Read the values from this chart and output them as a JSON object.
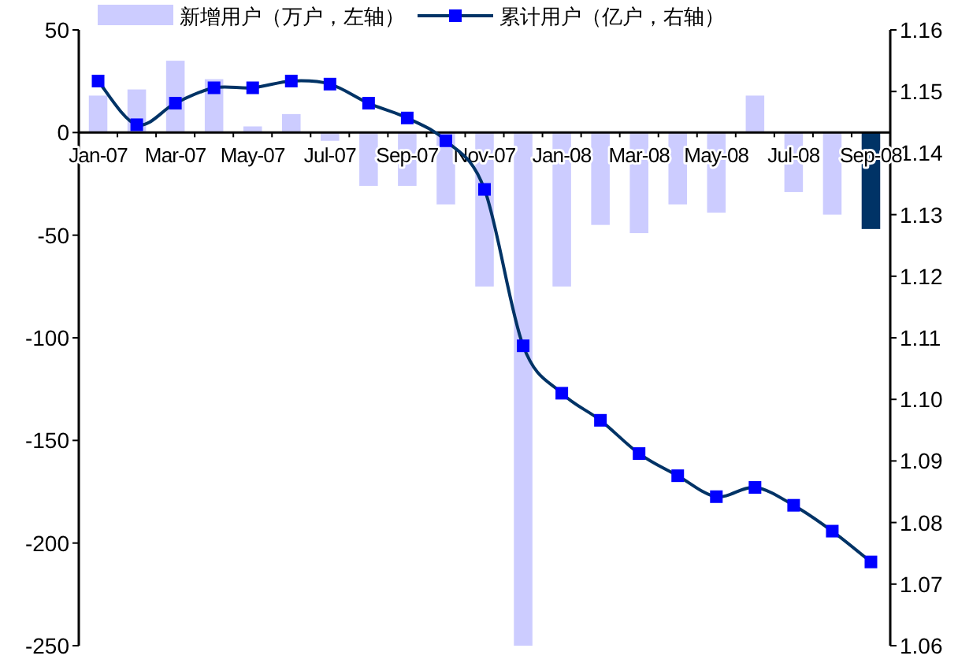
{
  "chart_data": {
    "type": "bar",
    "categories": [
      "Jan-07",
      null,
      "Mar-07",
      null,
      "May-07",
      null,
      "Jul-07",
      null,
      "Sep-07",
      null,
      "Nov-07",
      null,
      "Jan-08",
      null,
      "Mar-08",
      null,
      "May-08",
      null,
      "Jul-08",
      null,
      "Sep-08"
    ],
    "series": [
      {
        "name": "新增用户（万户，左轴）",
        "color": "#ccccff",
        "colors": [
          "#ccccff",
          "#ccccff",
          "#ccccff",
          "#ccccff",
          "#ccccff",
          "#ccccff",
          "#ccccff",
          "#ccccff",
          "#ccccff",
          "#ccccff",
          "#ccccff",
          "#ccccff",
          "#ccccff",
          "#ccccff",
          "#ccccff",
          "#ccccff",
          "#ccccff",
          "#ccccff",
          "#ccccff",
          "#ccccff",
          "#003366"
        ],
        "values": [
          18,
          21,
          35,
          26,
          3,
          9,
          -4,
          -26,
          -26,
          -35,
          -75,
          -250,
          -75,
          -45,
          -49,
          -35,
          -39,
          18,
          -29,
          -40,
          -47
        ]
      },
      {
        "name": "累计用户（亿户，右轴）",
        "type": "line",
        "axis": "y2",
        "color": "#003366",
        "marker": "square",
        "values": [
          1.1517,
          1.1446,
          1.1481,
          1.1506,
          1.1506,
          1.1517,
          1.1512,
          1.1481,
          1.1457,
          1.142,
          1.1341,
          1.1087,
          1.101,
          1.0966,
          1.0912,
          1.0876,
          1.0842,
          1.0857,
          1.0828,
          1.0786,
          1.0736
        ]
      }
    ],
    "ylim": [
      -250,
      50
    ],
    "yticks": [
      50,
      0,
      -50,
      -100,
      -150,
      -200,
      -250
    ],
    "y2lim": [
      1.06,
      1.16
    ],
    "y2ticks": [
      1.16,
      1.15,
      1.14,
      1.13,
      1.12,
      1.11,
      {
        "value": 1.1,
        "label": "1.10"
      },
      1.09,
      1.08,
      1.07,
      1.06
    ],
    "legend": "top"
  }
}
